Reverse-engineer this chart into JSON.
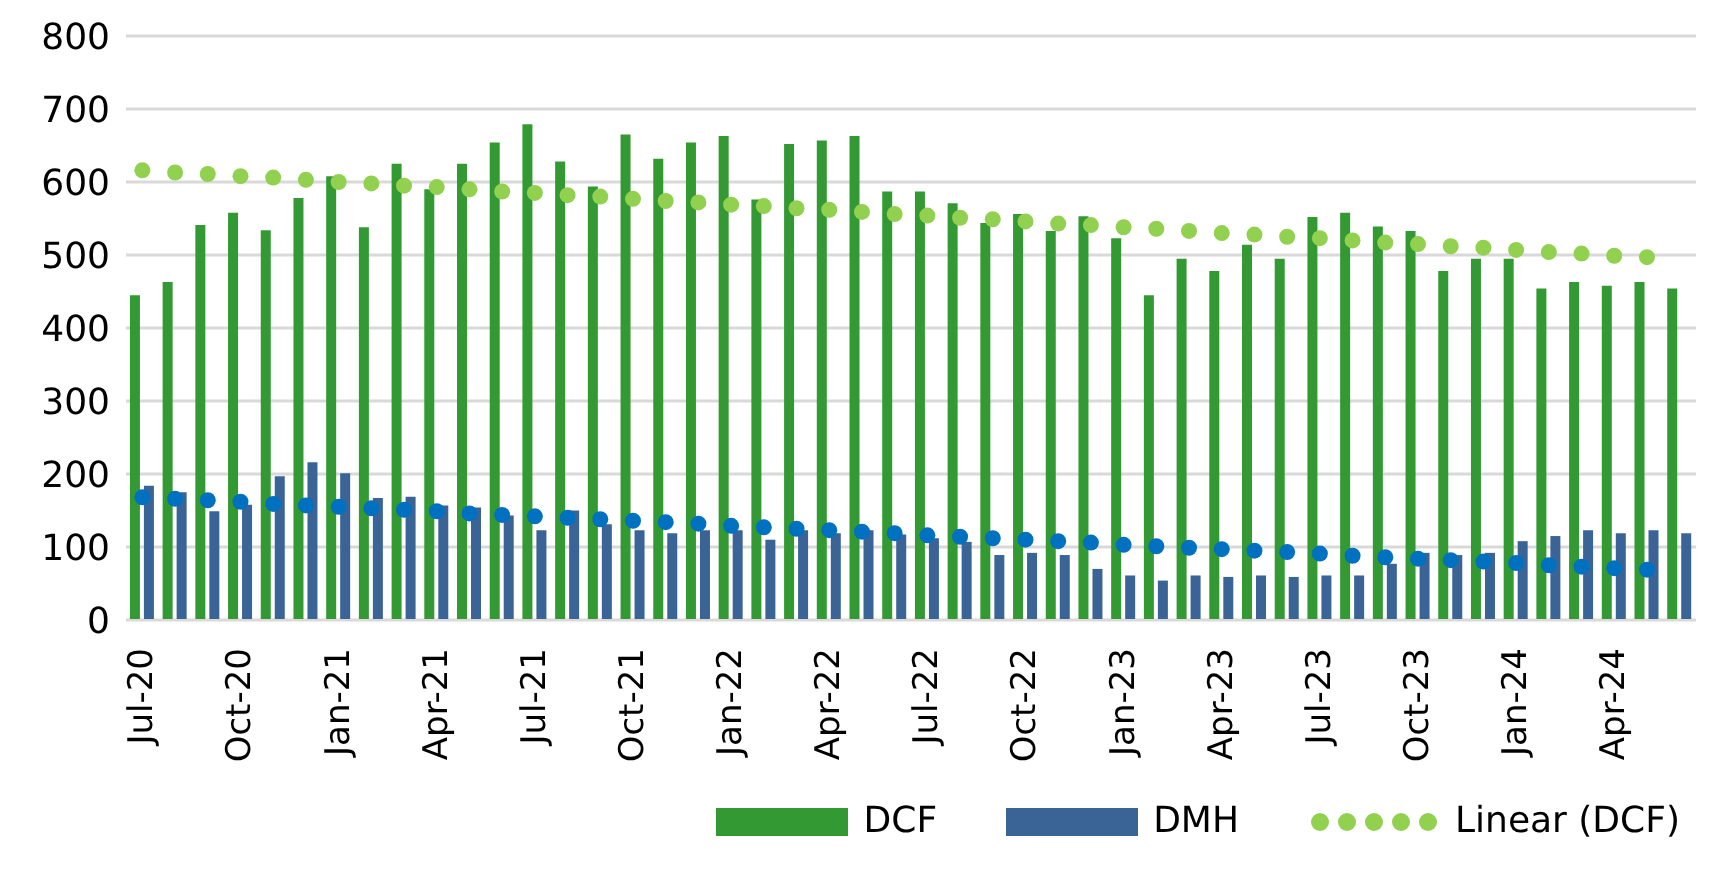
{
  "chart_data": {
    "type": "bar",
    "categories": [
      "Jul-20",
      null,
      null,
      "Oct-20",
      null,
      null,
      "Jan-21",
      null,
      null,
      "Apr-21",
      null,
      null,
      "Jul-21",
      null,
      null,
      "Oct-21",
      null,
      null,
      "Jan-22",
      null,
      null,
      "Apr-22",
      null,
      null,
      "Jul-22",
      null,
      null,
      "Oct-22",
      null,
      null,
      "Jan-23",
      null,
      null,
      "Apr-23",
      null,
      null,
      "Jul-23",
      null,
      null,
      "Oct-23",
      null,
      null,
      "Jan-24",
      null,
      null,
      "Apr-24",
      null,
      null
    ],
    "series": [
      {
        "name": "DCF",
        "color": "#339933",
        "values": [
          445,
          463,
          541,
          558,
          534,
          578,
          608,
          538,
          625,
          590,
          625,
          654,
          679,
          628,
          594,
          665,
          632,
          654,
          663,
          576,
          652,
          657,
          663,
          587,
          587,
          571,
          544,
          556,
          533,
          553,
          523,
          445,
          495,
          478,
          514,
          495,
          552,
          558,
          539,
          533,
          478,
          495,
          495,
          454,
          463,
          458,
          463,
          454
        ]
      },
      {
        "name": "DMH",
        "color": "#3a6496",
        "values": [
          184,
          175,
          149,
          158,
          197,
          216,
          201,
          167,
          169,
          157,
          154,
          143,
          123,
          150,
          131,
          123,
          119,
          123,
          123,
          110,
          123,
          119,
          123,
          117,
          112,
          107,
          89,
          92,
          89,
          70,
          61,
          54,
          61,
          59,
          61,
          59,
          61,
          61,
          77,
          92,
          89,
          92,
          108,
          115,
          123,
          119,
          123,
          119
        ]
      },
      {
        "name": "Linear (DCF)",
        "type": "scatter",
        "color": "#92d050",
        "values": [
          616,
          613,
          611,
          608,
          606,
          603,
          600,
          598,
          595,
          593,
          590,
          587,
          585,
          582,
          580,
          577,
          574,
          572,
          569,
          567,
          564,
          562,
          559,
          556,
          554,
          551,
          549,
          546,
          543,
          541,
          538,
          536,
          533,
          530,
          528,
          525,
          523,
          520,
          517,
          515,
          512,
          510,
          507,
          504,
          502,
          499,
          497,
          null
        ]
      },
      {
        "type": "scatter",
        "color": "#0070c0",
        "values": [
          168,
          166,
          164,
          162,
          159,
          157,
          155,
          153,
          151,
          149,
          146,
          144,
          142,
          140,
          138,
          136,
          134,
          132,
          129,
          127,
          125,
          123,
          121,
          119,
          116,
          114,
          112,
          110,
          108,
          106,
          103,
          101,
          99,
          97,
          95,
          93,
          91,
          88,
          86,
          84,
          82,
          80,
          78,
          75,
          73,
          71,
          69,
          null
        ]
      }
    ],
    "ylim": [
      0,
      800
    ],
    "yticks": [
      0,
      100,
      200,
      300,
      400,
      500,
      600,
      700,
      800
    ],
    "grid": "y",
    "marker": "circle",
    "legend": "bottom"
  }
}
